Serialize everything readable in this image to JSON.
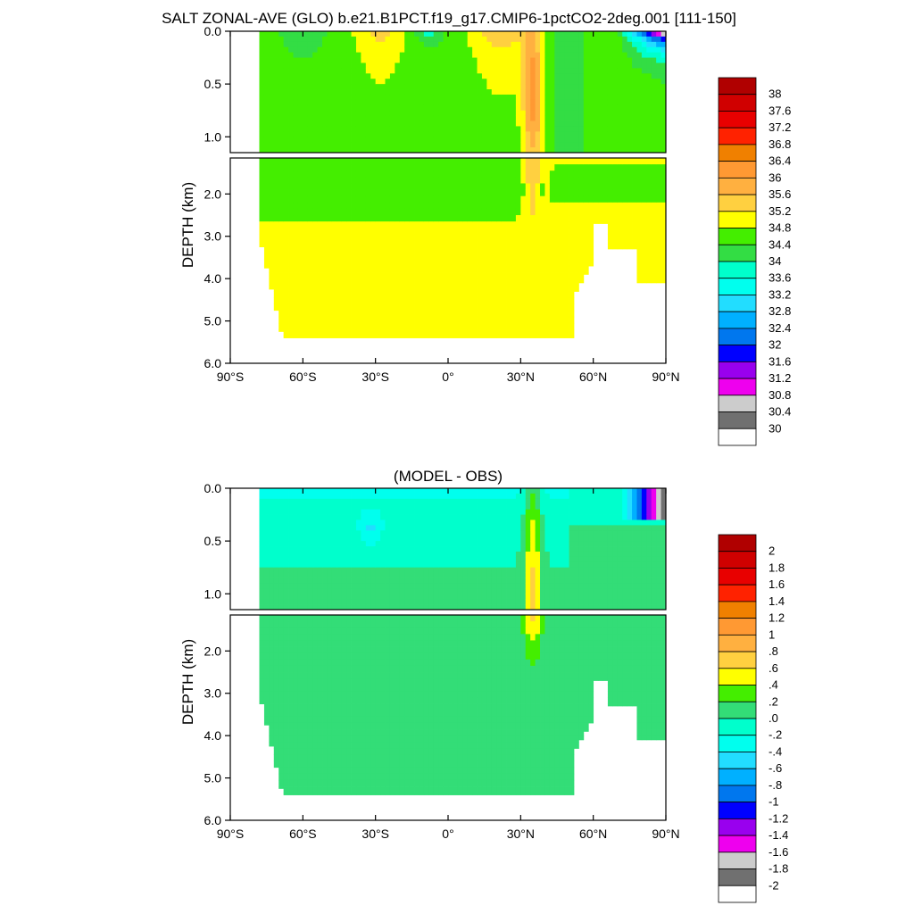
{
  "title": "SALT ZONAL-AVE (GLO) b.e21.B1PCT.f19_g17.CMIP6-1pctCO2-2deg.001 [111-150]",
  "chart_data": [
    {
      "type": "heatmap",
      "subtitle": "",
      "ylabel": "DEPTH (km)",
      "xlabel": "",
      "x_ticks": [
        "90°S",
        "60°S",
        "30°S",
        "0°",
        "30°N",
        "60°N",
        "90°N"
      ],
      "x_range": [
        -90,
        90
      ],
      "y_ticks_upper": [
        "0.0",
        "0.5",
        "1.0"
      ],
      "y_ticks_lower": [
        "2.0",
        "3.0",
        "4.0",
        "5.0",
        "6.0"
      ],
      "y_range_km": [
        0,
        6
      ],
      "colorbar_labels": [
        "38",
        "37.6",
        "37.2",
        "36.8",
        "36.4",
        "36",
        "35.6",
        "35.2",
        "34.8",
        "34.4",
        "34",
        "33.6",
        "33.2",
        "32.8",
        "32.4",
        "32",
        "31.6",
        "31.2",
        "30.8",
        "30.4",
        "30"
      ],
      "colors": [
        "#b00000",
        "#d00000",
        "#e80000",
        "#ff2200",
        "#f08000",
        "#ff9933",
        "#ffb040",
        "#ffd040",
        "#ffff00",
        "#44ee00",
        "#33dd44",
        "#00ffcc",
        "#00ffee",
        "#22ddff",
        "#00b0ff",
        "#0077ee",
        "#0000ff",
        "#9900ee",
        "#ee00ee",
        "#cccccc",
        "#707070",
        "#ffffff"
      ],
      "values_summary": {
        "upper_ocean_range": [
          33.2,
          36.6
        ],
        "deep_ocean_typical": [
          34.6,
          35.0
        ],
        "arctic_surface_min": 30.0
      }
    },
    {
      "type": "heatmap",
      "subtitle": "(MODEL - OBS)",
      "ylabel": "DEPTH (km)",
      "xlabel": "",
      "x_ticks": [
        "90°S",
        "60°S",
        "30°S",
        "0°",
        "30°N",
        "60°N",
        "90°N"
      ],
      "x_range": [
        -90,
        90
      ],
      "y_ticks_upper": [
        "0.0",
        "0.5",
        "1.0"
      ],
      "y_ticks_lower": [
        "2.0",
        "3.0",
        "4.0",
        "5.0",
        "6.0"
      ],
      "y_range_km": [
        0,
        6
      ],
      "colorbar_labels": [
        "2",
        "1.8",
        "1.6",
        "1.4",
        "1.2",
        "1",
        ".8",
        ".6",
        ".4",
        ".2",
        ".0",
        "-.2",
        "-.4",
        "-.6",
        "-.8",
        "-1",
        "-1.2",
        "-1.4",
        "-1.6",
        "-1.8",
        "-2"
      ],
      "colors": [
        "#b00000",
        "#d00000",
        "#e80000",
        "#ff2200",
        "#f08000",
        "#ff9933",
        "#ffb040",
        "#ffd040",
        "#ffff00",
        "#44ee00",
        "#33dd77",
        "#00ffcc",
        "#00ffee",
        "#22ddff",
        "#00b0ff",
        "#0077ee",
        "#0000ff",
        "#9900ee",
        "#ee00ee",
        "#cccccc",
        "#707070",
        "#ffffff"
      ],
      "values_summary": {
        "deep_ocean_typical": 0.1,
        "upper_ocean_typical": -0.3,
        "mediterranean_outflow_max": 0.7,
        "arctic_surface_min": -2.0
      }
    }
  ]
}
